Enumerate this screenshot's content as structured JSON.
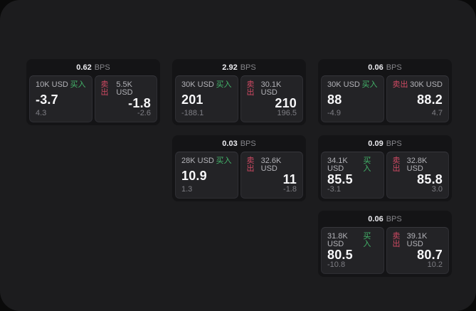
{
  "labels": {
    "bps_unit": "BPS",
    "buy": "买入",
    "sell": "卖出"
  },
  "colors": {
    "window_bg": "#1c1c1e",
    "card_bg": "#141416",
    "panel_bg": "#232326",
    "buy_accent": "#43b56a",
    "sell_accent": "#cf4a63"
  },
  "cards": [
    {
      "bps": "0.62",
      "buy": {
        "amount": "10K USD",
        "price": "-3.7",
        "delta": "4.3"
      },
      "sell": {
        "amount": "5.5K USD",
        "price": "-1.8",
        "delta": "-2.6"
      }
    },
    {
      "bps": "2.92",
      "buy": {
        "amount": "30K USD",
        "price": "201",
        "delta": "-188.1"
      },
      "sell": {
        "amount": "30.1K USD",
        "price": "210",
        "delta": "196.5"
      }
    },
    {
      "bps": "0.06",
      "buy": {
        "amount": "30K USD",
        "price": "88",
        "delta": "-4.9"
      },
      "sell": {
        "amount": "30K USD",
        "price": "88.2",
        "delta": "4.7"
      }
    },
    {
      "bps": "0.03",
      "buy": {
        "amount": "28K USD",
        "price": "10.9",
        "delta": "1.3"
      },
      "sell": {
        "amount": "32.6K USD",
        "price": "11",
        "delta": "-1.8"
      }
    },
    {
      "bps": "0.09",
      "buy": {
        "amount": "34.1K USD",
        "price": "85.5",
        "delta": "-3.1"
      },
      "sell": {
        "amount": "32.8K USD",
        "price": "85.8",
        "delta": "3.0"
      }
    },
    {
      "bps": "0.06",
      "buy": {
        "amount": "31.8K USD",
        "price": "80.5",
        "delta": "-10.8"
      },
      "sell": {
        "amount": "39.1K USD",
        "price": "80.7",
        "delta": "10.2"
      }
    }
  ]
}
